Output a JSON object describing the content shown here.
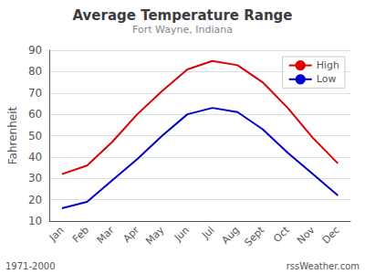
{
  "chart_data": {
    "type": "line",
    "title": "Average Temperature Range",
    "subtitle": "Fort Wayne, Indiana",
    "ylabel": "Fahrenheit",
    "categories": [
      "Jan",
      "Feb",
      "Mar",
      "Apr",
      "May",
      "Jun",
      "Jul",
      "Aug",
      "Sept",
      "Oct",
      "Nov",
      "Dec"
    ],
    "series": [
      {
        "name": "High",
        "color": "#dd0000",
        "values": [
          32,
          36,
          47,
          60,
          71,
          81,
          85,
          83,
          75,
          63,
          49,
          37
        ]
      },
      {
        "name": "Low",
        "color": "#0000cc",
        "values": [
          16,
          19,
          29,
          39,
          50,
          60,
          63,
          61,
          53,
          42,
          32,
          22
        ]
      }
    ],
    "ylim": [
      10,
      90
    ],
    "yticks": [
      10,
      20,
      30,
      40,
      50,
      60,
      70,
      80,
      90
    ],
    "grid": true,
    "legend": "upper right",
    "annotations": [
      "1971-2000",
      "rssWeather.com"
    ]
  }
}
